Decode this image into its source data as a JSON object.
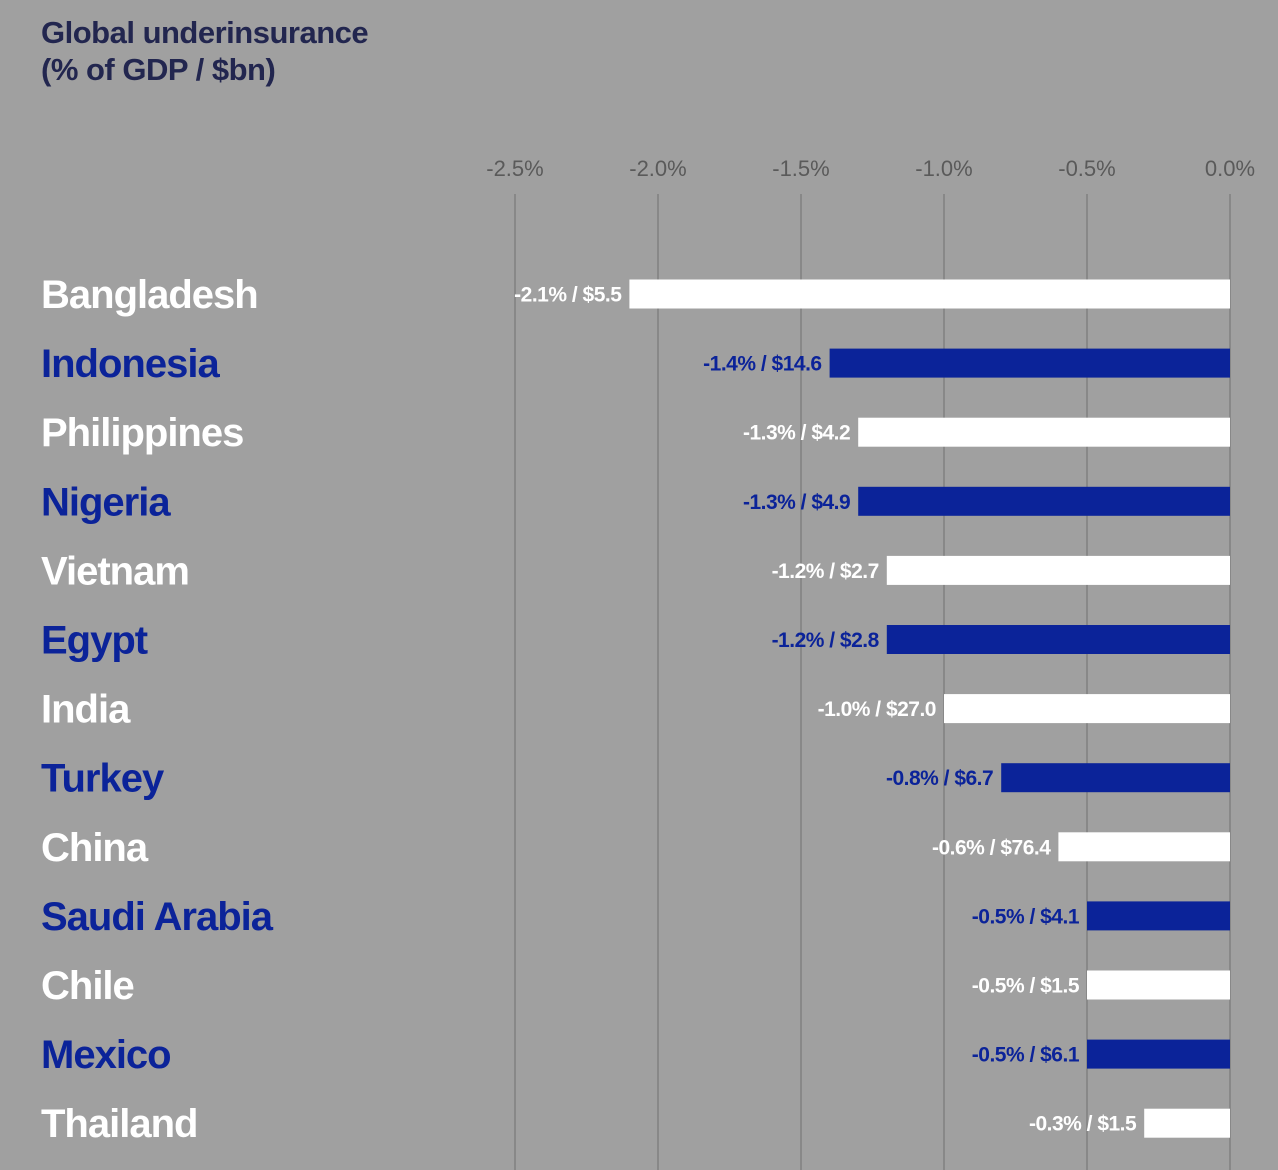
{
  "chart_data": {
    "type": "bar",
    "orientation": "horizontal",
    "title": "Global underinsurance",
    "subtitle": "(% of GDP / $bn)",
    "x_ticks": [
      "-2.5%",
      "-2.0%",
      "-1.5%",
      "-1.0%",
      "-0.5%",
      "0.0%"
    ],
    "xlim": [
      -2.5,
      0.0
    ],
    "grid": true,
    "categories": [
      "Bangladesh",
      "Indonesia",
      "Philippines",
      "Nigeria",
      "Vietnam",
      "Egypt",
      "India",
      "Turkey",
      "China",
      "Saudi Arabia",
      "Chile",
      "Mexico",
      "Thailand"
    ],
    "values": [
      -2.1,
      -1.4,
      -1.3,
      -1.3,
      -1.2,
      -1.2,
      -1.0,
      -0.8,
      -0.6,
      -0.5,
      -0.5,
      -0.5,
      -0.3
    ],
    "amounts_bn": [
      5.5,
      14.6,
      4.2,
      4.9,
      2.7,
      2.8,
      27.0,
      6.7,
      76.4,
      4.1,
      1.5,
      6.1,
      1.5
    ],
    "data_labels": [
      "-2.1% / $5.5",
      "-1.4% / $14.6",
      "-1.3% / $4.2",
      "-1.3% / $4.9",
      "-1.2% / $2.7",
      "-1.2% / $2.8",
      "-1.0% / $27.0",
      "-0.8% / $6.7",
      "-0.6% / $76.4",
      "-0.5% / $4.1",
      "-0.5% / $1.5",
      "-0.5% / $6.1",
      "-0.3% / $1.5"
    ],
    "colors": [
      "#ffffff",
      "#0b2399"
    ],
    "background": "#a0a0a0",
    "grid_color": "#707070",
    "tick_color": "#5a5a5a"
  }
}
